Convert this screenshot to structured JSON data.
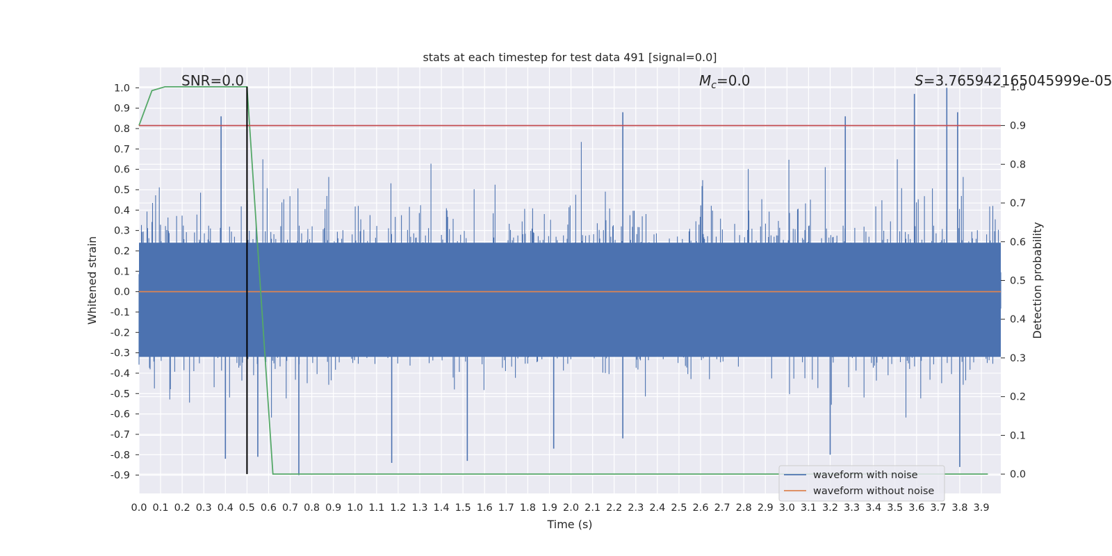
{
  "chart_data": {
    "type": "line",
    "title": "stats at each timestep for test data 491 [signal=0.0]",
    "xlabel": "Time (s)",
    "ylabel": "Whitened strain",
    "y2label": "Detection probability",
    "xlim": [
      0.0,
      3.99
    ],
    "ylim": [
      -0.99,
      1.1
    ],
    "y2lim": [
      -0.05,
      1.05
    ],
    "x_ticks": [
      "0.0",
      "0.1",
      "0.2",
      "0.3",
      "0.4",
      "0.5",
      "0.6",
      "0.7",
      "0.8",
      "0.9",
      "1.0",
      "1.1",
      "1.2",
      "1.3",
      "1.4",
      "1.5",
      "1.6",
      "1.7",
      "1.8",
      "1.9",
      "2.0",
      "2.1",
      "2.2",
      "2.3",
      "2.4",
      "2.5",
      "2.6",
      "2.7",
      "2.8",
      "2.9",
      "3.0",
      "3.1",
      "3.2",
      "3.3",
      "3.4",
      "3.5",
      "3.6",
      "3.7",
      "3.8",
      "3.9"
    ],
    "y_ticks": [
      "1.0",
      "0.9",
      "0.8",
      "0.7",
      "0.6",
      "0.5",
      "0.4",
      "0.3",
      "0.2",
      "0.1",
      "0.0",
      "-0.1",
      "-0.2",
      "-0.3",
      "-0.4",
      "-0.5",
      "-0.6",
      "-0.7",
      "-0.8",
      "-0.9"
    ],
    "y2_ticks": [
      "1.0",
      "0.9",
      "0.8",
      "0.7",
      "0.6",
      "0.5",
      "0.4",
      "0.3",
      "0.2",
      "0.1",
      "0.0"
    ],
    "annotations": {
      "snr": "SNR=0.0",
      "mc_symbol": "M",
      "mc_sub": "c",
      "mc_value": "=0.0",
      "s_symbol": "S",
      "s_value": "=3.765942165045999e-05"
    },
    "series": [
      {
        "name": "waveform with noise",
        "color": "#4c72b0",
        "description": "whitened noisy strain, dense noise between roughly -0.9 and 1.0",
        "spikes": [
          {
            "x": 0.38,
            "y": 0.86
          },
          {
            "x": 0.4,
            "y": -0.82
          },
          {
            "x": 0.55,
            "y": -0.81
          },
          {
            "x": 0.74,
            "y": -0.9
          },
          {
            "x": 1.17,
            "y": -0.84
          },
          {
            "x": 1.52,
            "y": -0.83
          },
          {
            "x": 2.24,
            "y": 0.88
          },
          {
            "x": 2.24,
            "y": -0.72
          },
          {
            "x": 3.27,
            "y": 0.86
          },
          {
            "x": 3.2,
            "y": -0.8
          },
          {
            "x": 3.59,
            "y": 0.97
          },
          {
            "x": 3.74,
            "y": 1.0
          },
          {
            "x": 3.79,
            "y": 0.88
          },
          {
            "x": 3.8,
            "y": -0.86
          },
          {
            "x": 1.92,
            "y": -0.77
          }
        ]
      },
      {
        "name": "waveform without noise",
        "color": "#dd8452",
        "x": [
          0.0,
          3.99
        ],
        "y": [
          0.0,
          0.0
        ]
      },
      {
        "name": "detection probability",
        "color": "#55a868",
        "axis": "right",
        "x": [
          0.0,
          0.06,
          0.12,
          0.18,
          0.25,
          0.31,
          0.37,
          0.43,
          0.5,
          0.56,
          0.62,
          0.69,
          0.75,
          1.0,
          1.5,
          2.0,
          2.5,
          3.0,
          3.5,
          3.93
        ],
        "y": [
          0.9,
          0.99,
          1.0,
          1.0,
          1.0,
          1.0,
          1.0,
          1.0,
          1.0,
          0.5,
          0.0,
          0.0,
          0.0,
          0.0,
          0.0,
          0.0,
          0.0,
          0.0,
          0.0,
          0.0
        ]
      },
      {
        "name": "threshold",
        "color": "#c44e52",
        "axis": "right",
        "x": [
          0.0,
          3.99
        ],
        "y": [
          0.9,
          0.9
        ]
      },
      {
        "name": "marker",
        "color": "#000000",
        "axis": "right",
        "x": [
          0.5,
          0.5
        ],
        "y": [
          0.0,
          1.0
        ]
      }
    ],
    "legend": {
      "position": "lower-right",
      "entries": [
        {
          "label": "waveform with noise",
          "color": "#4c72b0"
        },
        {
          "label": "waveform without noise",
          "color": "#dd8452"
        }
      ]
    },
    "grid": true,
    "style": {
      "background": "#eaeaf2",
      "grid": "#ffffff"
    }
  }
}
